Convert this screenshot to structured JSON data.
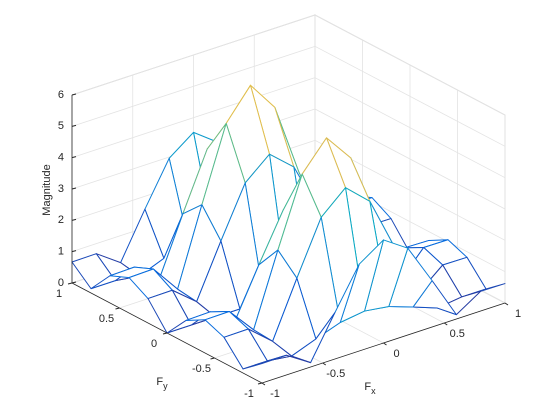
{
  "chart_data": {
    "type": "mesh3d",
    "xlabel": "Fx",
    "ylabel": "Fy",
    "zlabel": "Magnitude",
    "x": [
      -1,
      -0.8,
      -0.6,
      -0.4,
      -0.2,
      0,
      0.2,
      0.4,
      0.6,
      0.8,
      1
    ],
    "y": [
      -1,
      -0.8,
      -0.6,
      -0.4,
      -0.2,
      0,
      0.2,
      0.4,
      0.6,
      0.8,
      1
    ],
    "z": [
      [
        0.62,
        0.63,
        0.14,
        1.48,
        2.77,
        3.29,
        2.77,
        1.48,
        0.14,
        0.63,
        0.62
      ],
      [
        0.13,
        0.13,
        0.03,
        0.32,
        0.59,
        0.7,
        0.59,
        0.32,
        0.03,
        0.13,
        0.13
      ],
      [
        0.82,
        0.83,
        0.18,
        1.94,
        3.63,
        4.32,
        3.63,
        1.94,
        0.18,
        0.83,
        0.82
      ],
      [
        1.06,
        1.07,
        0.23,
        2.52,
        4.69,
        5.59,
        4.69,
        2.52,
        0.23,
        1.07,
        1.06
      ],
      [
        0.72,
        0.74,
        0.16,
        1.73,
        3.22,
        3.84,
        3.22,
        1.73,
        0.16,
        0.74,
        0.72
      ],
      [
        0,
        0,
        0,
        0,
        0,
        0,
        0,
        0,
        0,
        0,
        0
      ],
      [
        0.78,
        0.79,
        0.17,
        1.85,
        3.45,
        4.11,
        3.45,
        1.85,
        0.17,
        0.79,
        0.78
      ],
      [
        1.13,
        1.15,
        0.25,
        2.69,
        5.03,
        5.99,
        5.03,
        2.69,
        0.25,
        1.15,
        1.13
      ],
      [
        0.87,
        0.89,
        0.19,
        2.08,
        3.89,
        4.63,
        3.89,
        2.08,
        0.19,
        0.89,
        0.87
      ],
      [
        0.14,
        0.14,
        0.03,
        0.34,
        0.63,
        0.75,
        0.63,
        0.34,
        0.03,
        0.14,
        0.14
      ],
      [
        0.67,
        0.68,
        0.14,
        1.59,
        2.96,
        3.53,
        2.96,
        1.59,
        0.14,
        0.68,
        0.67
      ]
    ],
    "xlim": [
      -1,
      1
    ],
    "ylim": [
      -1,
      1
    ],
    "zlim": [
      0,
      6
    ],
    "xticks": [
      -1,
      -0.5,
      0,
      0.5,
      1
    ],
    "yticks": [
      -1,
      -0.5,
      0,
      0.5,
      1
    ],
    "zticks": [
      0,
      1,
      2,
      3,
      4,
      5,
      6
    ],
    "grid": true,
    "colormap": "parula"
  }
}
